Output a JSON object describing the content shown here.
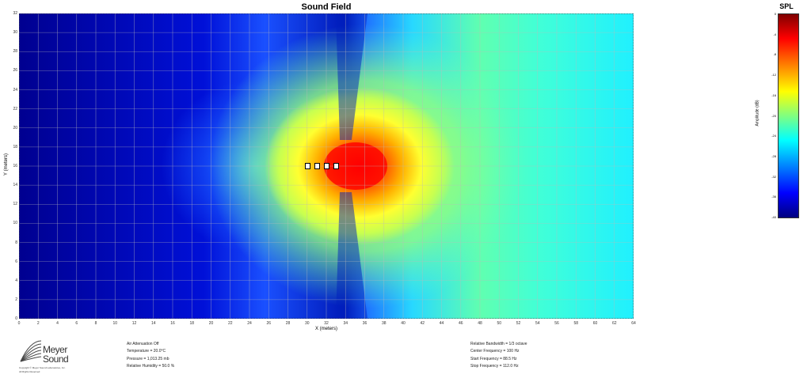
{
  "chart_data": {
    "type": "heatmap",
    "title": "Sound Field",
    "xlabel": "X (meters)",
    "ylabel": "Y (meters)",
    "xlim": [
      0,
      64
    ],
    "ylim": [
      0,
      32
    ],
    "x_ticks": [
      "0",
      "2",
      "4",
      "6",
      "8",
      "10",
      "12",
      "14",
      "16",
      "18",
      "20",
      "22",
      "24",
      "26",
      "28",
      "30",
      "32",
      "34",
      "36",
      "38",
      "40",
      "42",
      "44",
      "46",
      "48",
      "50",
      "52",
      "54",
      "56",
      "58",
      "60",
      "62",
      "64"
    ],
    "y_ticks": [
      "32",
      "30",
      "28",
      "26",
      "24",
      "22",
      "20",
      "18",
      "16",
      "14",
      "12",
      "10",
      "8",
      "6",
      "4",
      "2",
      "0"
    ],
    "grid": true,
    "colorbar": {
      "title": "SPL",
      "label": "Amplitude (dB)",
      "range": [
        -40,
        0
      ],
      "ticks": [
        "0",
        "-4",
        "-8",
        "-12",
        "-16",
        "-20",
        "-24",
        "-28",
        "-32",
        "-36",
        "-40"
      ]
    },
    "sources": [
      {
        "x": 30,
        "y": 16
      },
      {
        "x": 31,
        "y": 16
      },
      {
        "x": 32,
        "y": 16
      },
      {
        "x": 33,
        "y": 16
      }
    ]
  },
  "logo": {
    "word1": "Meyer",
    "word2": "Sound",
    "copyright": "Copyright © Meyer Sound Laboratories, Inc.",
    "rights": "All Rights Reserved"
  },
  "info_left": [
    "Air Attenuation Off",
    "Temperature = 20.0°C",
    "Pressure = 1,013.25 mb",
    "Relative Humidity = 50.0 %"
  ],
  "info_right": [
    "Relative Bandwidth = 1/3 octave",
    "Center Frequency = 100 Hz",
    "Start Frequency = 88.5 Hz",
    "Stop Frequency = 112.0 Hz"
  ]
}
